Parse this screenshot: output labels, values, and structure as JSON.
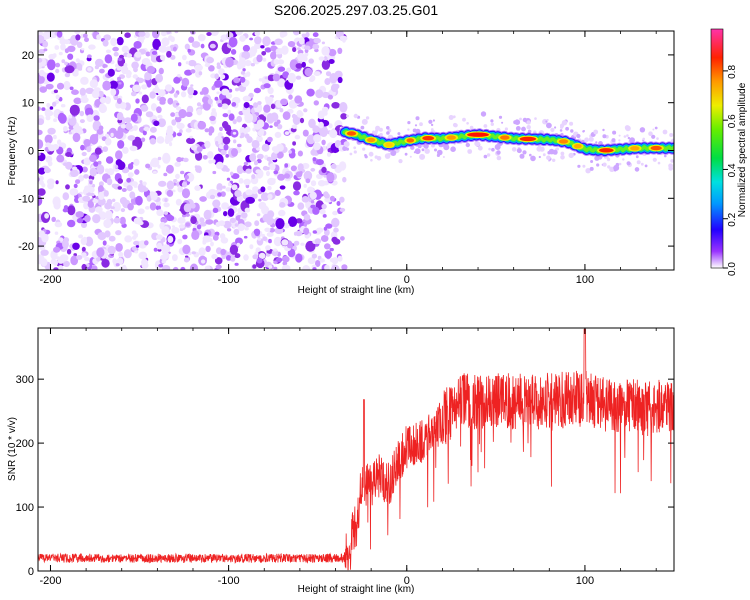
{
  "figure": {
    "title": "S206.2025.297.03.25.G01"
  },
  "chart_data": [
    {
      "type": "heatmap",
      "xlabel": "Height of straight line (km)",
      "ylabel": "Frequency (Hz)",
      "xlim": [
        -207,
        150
      ],
      "ylim": [
        -25,
        25
      ],
      "xticks": [
        -200,
        -100,
        0,
        100
      ],
      "yticks": [
        -20,
        -10,
        0,
        10,
        20
      ],
      "noise_region_x": [
        -207,
        -35
      ],
      "ridge_x": [
        -35,
        -30,
        -20,
        -10,
        0,
        10,
        20,
        40,
        60,
        80,
        90,
        100,
        110,
        130,
        150
      ],
      "ridge_y": [
        3.8,
        3.5,
        2.2,
        1.2,
        2.0,
        2.6,
        2.5,
        3.3,
        2.5,
        2.3,
        1.8,
        0.3,
        0.0,
        0.5,
        0.5
      ],
      "colorbar": {
        "label": "Normalized spectral amplitude",
        "range": [
          0,
          0.97
        ],
        "ticks": [
          0.0,
          0.2,
          0.4,
          0.6,
          0.8
        ]
      }
    },
    {
      "type": "line",
      "xlabel": "Height of straight line (km)",
      "ylabel": "SNR (10 * v/v)",
      "xlim": [
        -207,
        150
      ],
      "ylim": [
        0,
        380
      ],
      "xticks": [
        -200,
        -100,
        0,
        100
      ],
      "yticks": [
        0,
        100,
        200,
        300
      ],
      "color": "#ee2222",
      "series": [
        {
          "name": "SNR",
          "x": [
            -207,
            -35,
            -28,
            -25,
            -20,
            -15,
            -10,
            -5,
            0,
            5,
            10,
            15,
            20,
            25,
            30,
            40,
            60,
            80,
            100,
            120,
            150
          ],
          "y": [
            20,
            20,
            80,
            140,
            130,
            150,
            135,
            170,
            195,
            200,
            205,
            215,
            235,
            250,
            270,
            265,
            265,
            265,
            270,
            255,
            255
          ]
        }
      ]
    }
  ]
}
